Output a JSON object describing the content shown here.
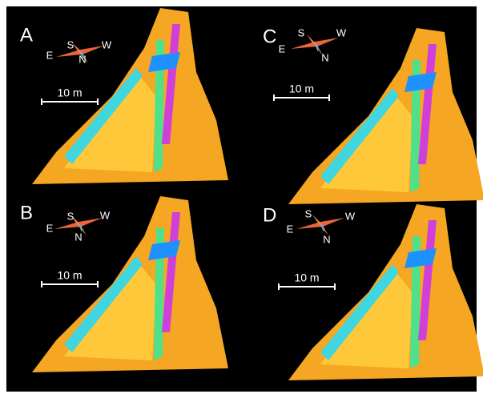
{
  "panels": [
    {
      "label": "A",
      "compass": {
        "s": "S",
        "w": "W",
        "e": "E",
        "n": "N"
      },
      "scale": "10 m"
    },
    {
      "label": "B",
      "compass": {
        "s": "S",
        "w": "W",
        "e": "E",
        "n": "N"
      },
      "scale": "10 m"
    },
    {
      "label": "C",
      "compass": {
        "s": "S",
        "w": "W",
        "e": "E",
        "n": "N"
      },
      "scale": "10 m"
    },
    {
      "label": "D",
      "compass": {
        "s": "S",
        "w": "W",
        "e": "E",
        "n": "N"
      },
      "scale": "10 m"
    }
  ]
}
